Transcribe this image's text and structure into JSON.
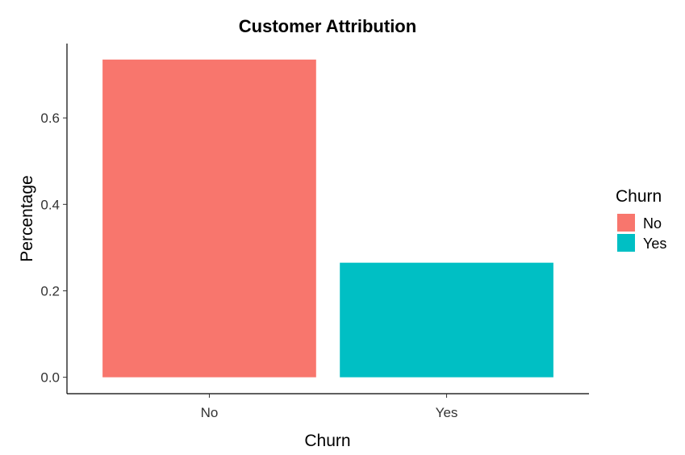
{
  "chart_data": {
    "type": "bar",
    "title": "Customer Attribution",
    "xlabel": "Churn",
    "ylabel": "Percentage",
    "categories": [
      "No",
      "Yes"
    ],
    "values": [
      0.735,
      0.265
    ],
    "colors": [
      "#F8766D",
      "#00BFC4"
    ],
    "ylim": [
      -0.038,
      0.772
    ],
    "yticks": [
      0.0,
      0.2,
      0.4,
      0.6
    ],
    "ytick_labels": [
      "0.0",
      "0.2",
      "0.4",
      "0.6"
    ],
    "grid": false,
    "legend": {
      "title": "Churn",
      "position": "right",
      "entries": [
        {
          "label": "No",
          "color": "#F8766D"
        },
        {
          "label": "Yes",
          "color": "#00BFC4"
        }
      ]
    }
  }
}
